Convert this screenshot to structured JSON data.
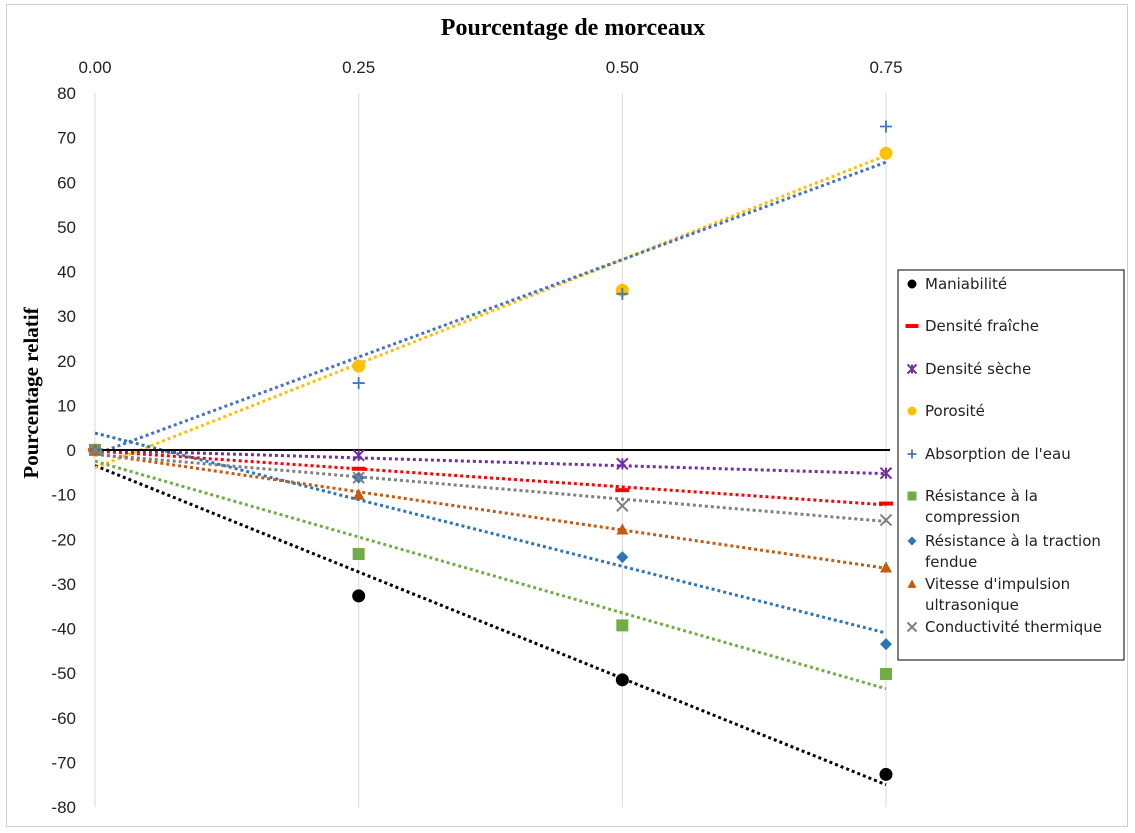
{
  "chart_data": {
    "type": "scatter",
    "title": "Pourcentage de morceaux",
    "xlabel": "Pourcentage de morceaux",
    "ylabel": "Pourcentage relatif",
    "x_axis_position": "top",
    "x_ticks": [
      "0.00",
      "0.25",
      "0.50",
      "0.75"
    ],
    "x_tick_values": [
      0,
      0.25,
      0.5,
      0.75
    ],
    "y_ticks": [
      "80",
      "70",
      "60",
      "50",
      "40",
      "30",
      "20",
      "10",
      "0",
      "-10",
      "-20",
      "-30",
      "-40",
      "-50",
      "-60",
      "-70",
      "-80"
    ],
    "y_tick_values": [
      80,
      70,
      60,
      50,
      40,
      30,
      20,
      10,
      0,
      -10,
      -20,
      -30,
      -40,
      -50,
      -60,
      -70,
      -80
    ],
    "xlim": [
      0,
      0.75
    ],
    "ylim": [
      -80,
      80
    ],
    "grid": "vertical",
    "legend_position": "right",
    "trendlines": "linear, dotted",
    "series": [
      {
        "name": "Maniabilité",
        "marker": "circle",
        "color": "#000000",
        "x": [
          0,
          0.25,
          0.5,
          0.75
        ],
        "values": [
          0,
          -32.7,
          -51.5,
          -72.7
        ],
        "trend": [
          -3.5,
          -75
        ]
      },
      {
        "name": "Densité fraîche",
        "marker": "dash",
        "color": "#ff0000",
        "x": [
          0,
          0.25,
          0.5,
          0.75
        ],
        "values": [
          0,
          -4.2,
          -9,
          -12
        ],
        "trend": [
          -0.2,
          -12.3
        ]
      },
      {
        "name": "Densité sèche",
        "marker": "star",
        "color": "#7030a0",
        "x": [
          0,
          0.25,
          0.5,
          0.75
        ],
        "values": [
          0,
          -1.2,
          -3.1,
          -5.2
        ],
        "trend": [
          0,
          -5.3
        ]
      },
      {
        "name": "Porosité",
        "marker": "circle",
        "color": "#ffc000",
        "x": [
          0,
          0.25,
          0.5,
          0.75
        ],
        "values": [
          0,
          18.8,
          35.8,
          66.5
        ],
        "trend": [
          -4,
          66
        ]
      },
      {
        "name": "Absorption de l'eau",
        "marker": "plus",
        "color": "#4472c4",
        "x": [
          0,
          0.25,
          0.5,
          0.75
        ],
        "values": [
          0,
          15,
          35,
          72.5
        ],
        "trend": [
          -1,
          64.5
        ]
      },
      {
        "name": "Résistance à la compression",
        "marker": "square",
        "color": "#70ad47",
        "x": [
          0,
          0.25,
          0.5,
          0.75
        ],
        "values": [
          0,
          -23.3,
          -39.3,
          -50.2
        ],
        "trend": [
          -2.5,
          -53.5
        ]
      },
      {
        "name": "Résistance à la traction fendue",
        "marker": "diamond",
        "color": "#2e75b6",
        "x": [
          0,
          0.25,
          0.5,
          0.75
        ],
        "values": [
          0,
          -6.2,
          -24,
          -43.5
        ],
        "trend": [
          3.8,
          -41
        ]
      },
      {
        "name": "Vitesse d'impulsion ultrasonique",
        "marker": "triangle",
        "color": "#c55a11",
        "x": [
          0,
          0.25,
          0.5,
          0.75
        ],
        "values": [
          0,
          -10,
          -17.8,
          -26.3
        ],
        "trend": [
          -0.8,
          -26.5
        ]
      },
      {
        "name": "Conductivité thermique",
        "marker": "x",
        "color": "#808080",
        "x": [
          0,
          0.25,
          0.5,
          0.75
        ],
        "values": [
          0,
          -6.2,
          -12.5,
          -15.7
        ],
        "trend": [
          -1,
          -16
        ]
      }
    ],
    "legend_lines": [
      [
        "Maniabilité"
      ],
      [
        "Densité fraîche"
      ],
      [
        "Densité sèche"
      ],
      [
        "Porosité"
      ],
      [
        "Absorption de l'eau"
      ],
      [
        "Résistance à la",
        "compression"
      ],
      [
        "Résistance à la traction",
        "fendue"
      ],
      [
        "Vitesse d'impulsion",
        "ultrasonique"
      ],
      [
        "Conductivité thermique"
      ]
    ]
  }
}
